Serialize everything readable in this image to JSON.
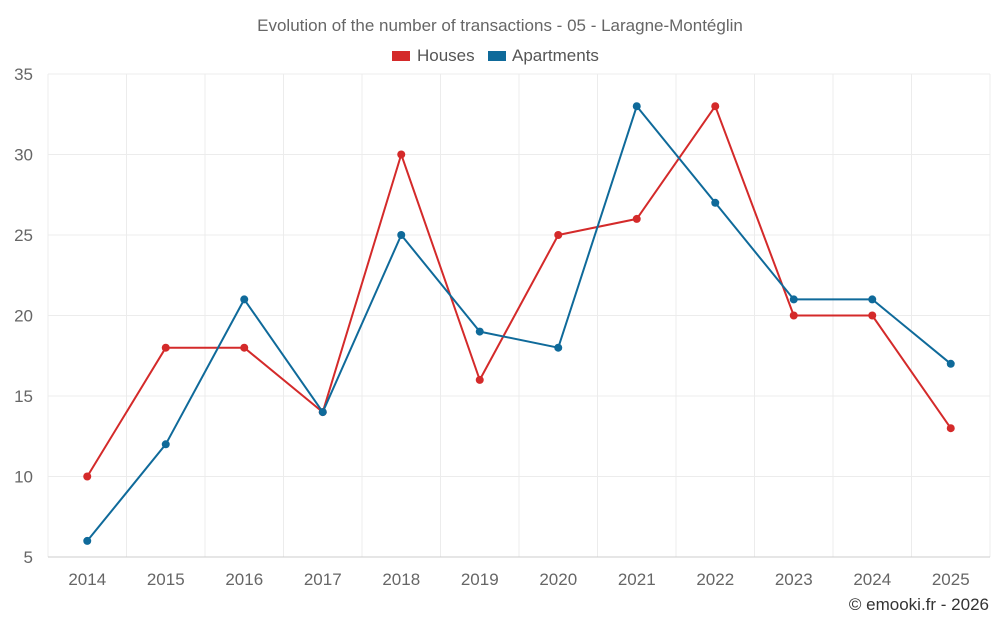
{
  "chart_data": {
    "type": "line",
    "title": "Evolution of the number of transactions - 05 - Laragne-Montéglin",
    "categories": [
      "2014",
      "2015",
      "2016",
      "2017",
      "2018",
      "2019",
      "2020",
      "2021",
      "2022",
      "2023",
      "2024",
      "2025"
    ],
    "series": [
      {
        "name": "Houses",
        "color": "#d42a2a",
        "values": [
          10,
          18,
          18,
          14,
          30,
          16,
          25,
          26,
          33,
          20,
          20,
          13
        ]
      },
      {
        "name": "Apartments",
        "color": "#0f6a9a",
        "values": [
          6,
          12,
          21,
          14,
          25,
          19,
          18,
          33,
          27,
          21,
          21,
          17
        ]
      }
    ],
    "ylim": [
      5,
      35
    ],
    "yticks": [
      5,
      10,
      15,
      20,
      25,
      30,
      35
    ],
    "xlabel": "",
    "ylabel": "",
    "grid": true,
    "legend": "top-center"
  },
  "credit": "© emooki.fr - 2026"
}
